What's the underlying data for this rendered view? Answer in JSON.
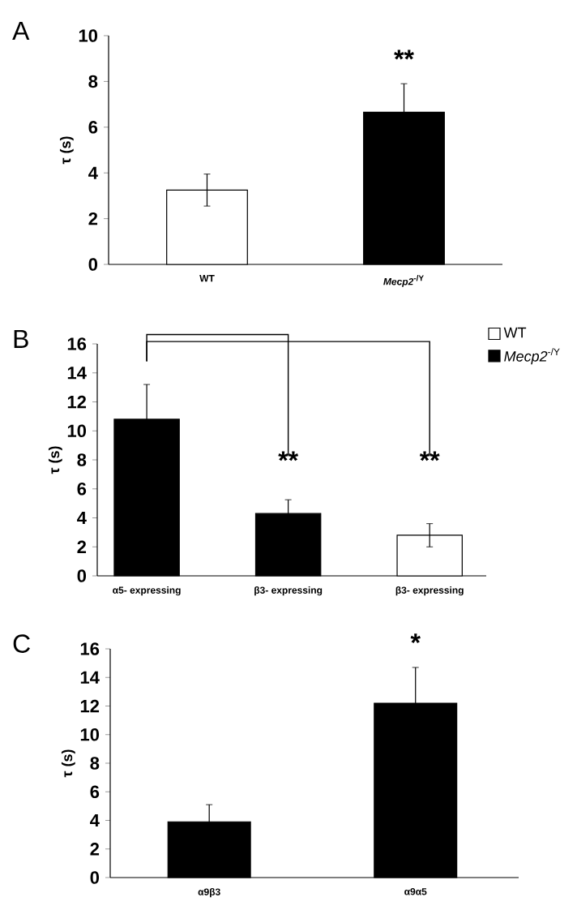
{
  "chart_data": [
    {
      "type": "bar",
      "title": "A",
      "ylabel": "τ (s)",
      "categories": [
        "WT",
        "*Mecp2*$^{-/Y}$"
      ],
      "values": [
        3.25,
        6.65
      ],
      "errors": [
        0.7,
        1.25
      ],
      "colors": [
        "#ffffff",
        "#000000"
      ],
      "ylim": [
        0,
        10
      ],
      "yticks": [
        0,
        2,
        4,
        6,
        8,
        10
      ],
      "annotations": [
        "**"
      ]
    },
    {
      "type": "bar",
      "title": "B",
      "ylabel": "τ (s)",
      "categories": [
        "α5- expressing",
        "β3- expressing",
        "β3- expressing"
      ],
      "legend": "top right",
      "series": [
        {
          "name": "WT",
          "color": "#ffffff",
          "values": [
            null,
            null,
            2.8
          ],
          "errors": [
            null,
            null,
            0.8
          ]
        },
        {
          "name": "*Mecp2*$^{-/Y}$",
          "color": "#000000",
          "values": [
            10.8,
            4.3,
            null
          ],
          "errors": [
            2.4,
            0.95,
            null
          ]
        }
      ],
      "ylim": [
        0,
        16
      ],
      "yticks": [
        0,
        2,
        4,
        6,
        8,
        10,
        12,
        14,
        16
      ],
      "annotations": [
        "**",
        "**"
      ]
    },
    {
      "type": "bar",
      "title": "C",
      "ylabel": "τ (s)",
      "categories": [
        "α9β3",
        "α9α5"
      ],
      "values": [
        3.9,
        12.2
      ],
      "errors": [
        1.2,
        2.5
      ],
      "colors": [
        "#000000",
        "#000000"
      ],
      "ylim": [
        0,
        16
      ],
      "yticks": [
        0,
        2,
        4,
        6,
        8,
        10,
        12,
        14,
        16
      ],
      "annotations": [
        "*"
      ]
    }
  ]
}
